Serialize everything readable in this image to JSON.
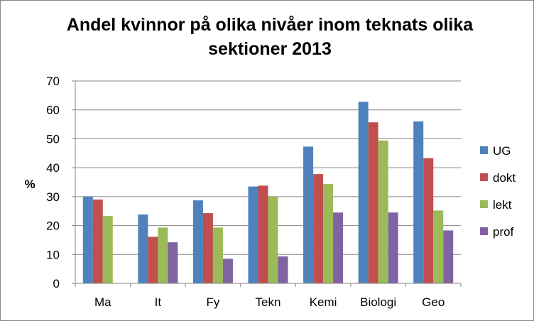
{
  "chart_data": {
    "type": "bar",
    "title": "Andel kvinnor på olika nivåer inom teknats olika sektioner 2013",
    "ylabel": "%",
    "xlabel": "",
    "ylim": [
      0,
      70
    ],
    "yticks": [
      0,
      10,
      20,
      30,
      40,
      50,
      60,
      70
    ],
    "grid": true,
    "legend_position": "right",
    "categories": [
      "Ma",
      "It",
      "Fy",
      "Tekn",
      "Kemi",
      "Biologi",
      "Geo"
    ],
    "series": [
      {
        "name": "UG",
        "color": "#4F81BD",
        "values": [
          30,
          23.8,
          28.7,
          33.5,
          47.3,
          62.8,
          56
        ]
      },
      {
        "name": "dokt",
        "color": "#C0504D",
        "values": [
          29,
          16.1,
          24.3,
          33.8,
          37.8,
          55.7,
          43.3
        ]
      },
      {
        "name": "lekt",
        "color": "#9BBB59",
        "values": [
          23.3,
          19.3,
          19.3,
          30,
          34.4,
          49.4,
          25.2
        ]
      },
      {
        "name": "prof",
        "color": "#8064A2",
        "values": [
          0,
          14.2,
          8.5,
          9.3,
          24.5,
          24.5,
          18.3
        ]
      }
    ]
  }
}
